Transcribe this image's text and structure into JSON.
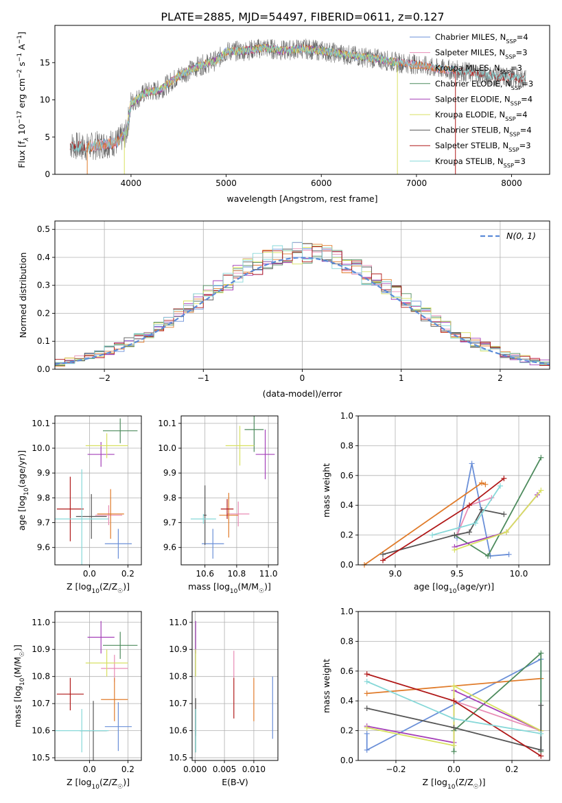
{
  "figure_title": "PLATE=2885, MJD=54497, FIBERID=0611, z=0.127",
  "colors": {
    "Chabrier MILES": "#6a8fd8",
    "Salpeter MILES": "#e88bb4",
    "Kroupa MILES": "#e07b2a",
    "Chabrier ELODIE": "#4c8a5c",
    "Salpeter ELODIE": "#a43fb8",
    "Kroupa ELODIE": "#d8e060",
    "Chabrier STELIB": "#555555",
    "Salpeter STELIB": "#b01818",
    "Kroupa STELIB": "#86d8d8",
    "normal_curve": "#5b8bd8"
  },
  "chart_data": [
    {
      "id": "spectrum",
      "type": "line",
      "title": "PLATE=2885, MJD=54497, FIBERID=0611, z=0.127",
      "xlabel": "wavelength [Angstrom, rest frame]",
      "ylabel": "Flux [f_λ 10^-17 erg cm^-2 s^-1 A^-1]",
      "xlim": [
        3200,
        8400
      ],
      "ylim": [
        0,
        20
      ],
      "xticks": [
        4000,
        5000,
        6000,
        7000,
        8000
      ],
      "yticks": [
        0,
        5,
        10,
        15
      ],
      "grid": false,
      "legend_position": "top-right",
      "continuum": {
        "x": [
          3350,
          3500,
          3700,
          3850,
          3950,
          4000,
          4150,
          4300,
          4500,
          4700,
          4900,
          5000,
          5200,
          5400,
          5600,
          5800,
          6000,
          6200,
          6400,
          6600,
          6800,
          7000,
          7200,
          7400,
          7600,
          7800,
          8000,
          8150
        ],
        "y": [
          4.0,
          3.6,
          4.0,
          4.3,
          5.5,
          9.5,
          11.0,
          11.3,
          13.2,
          14.5,
          15.3,
          16.5,
          16.6,
          17.0,
          16.6,
          16.9,
          16.6,
          16.2,
          15.8,
          15.5,
          15.0,
          14.8,
          14.2,
          14.0,
          13.6,
          13.2,
          13.0,
          12.8
        ]
      },
      "series": [
        {
          "name": "Chabrier MILES",
          "nssp": "4"
        },
        {
          "name": "Salpeter MILES",
          "nssp": "3"
        },
        {
          "name": "Kroupa MILES",
          "nssp": "3"
        },
        {
          "name": "Chabrier ELODIE",
          "nssp": "3"
        },
        {
          "name": "Salpeter ELODIE",
          "nssp": "4"
        },
        {
          "name": "Kroupa ELODIE",
          "nssp": "4"
        },
        {
          "name": "Chabrier STELIB",
          "nssp": "4"
        },
        {
          "name": "Salpeter STELIB",
          "nssp": "3"
        },
        {
          "name": "Kroupa STELIB",
          "nssp": "3"
        }
      ],
      "legend_prefix": "N",
      "legend_sub": "SSP"
    },
    {
      "id": "residuals",
      "type": "line",
      "xlabel": "(data-model)/error",
      "ylabel": "Normed distribution",
      "xlim": [
        -2.5,
        2.5
      ],
      "ylim": [
        0,
        0.53
      ],
      "xticks": [
        -2,
        -1,
        0,
        1,
        2
      ],
      "yticks": [
        0.0,
        0.1,
        0.2,
        0.3,
        0.4,
        0.5
      ],
      "grid": true,
      "legend_position": "top-right",
      "legend_label": "N(0, 1)",
      "bin_width": 0.1
    },
    {
      "id": "age_vs_Z",
      "type": "scatter",
      "xlabel": "Z [log10(Z/Z☉)]",
      "ylabel": "age [log10(age/yr)]",
      "xlim": [
        -0.18,
        0.27
      ],
      "ylim": [
        9.53,
        10.13
      ],
      "xticks": [
        0.0,
        0.2
      ],
      "xticklabels": [
        "0.0",
        "0.2"
      ],
      "yticks": [
        9.6,
        9.7,
        9.8,
        9.9,
        10.0,
        10.1
      ],
      "grid": true,
      "points": [
        {
          "series": "Chabrier MILES",
          "x": 0.15,
          "xerr": 0.07,
          "y": 9.615,
          "yerr": 0.06
        },
        {
          "series": "Salpeter MILES",
          "x": 0.1,
          "xerr": 0.07,
          "y": 9.73,
          "yerr": 0.04
        },
        {
          "series": "Kroupa MILES",
          "x": 0.11,
          "xerr": 0.07,
          "y": 9.735,
          "yerr": 0.1
        },
        {
          "series": "Chabrier ELODIE",
          "x": 0.16,
          "xerr": 0.09,
          "y": 10.07,
          "yerr": 0.05
        },
        {
          "series": "Salpeter ELODIE",
          "x": 0.06,
          "xerr": 0.07,
          "y": 9.975,
          "yerr": 0.05
        },
        {
          "series": "Kroupa ELODIE",
          "x": 0.09,
          "xerr": 0.11,
          "y": 10.01,
          "yerr": 0.05
        },
        {
          "series": "Chabrier STELIB",
          "x": 0.01,
          "xerr": 0.08,
          "y": 9.725,
          "yerr": 0.09
        },
        {
          "series": "Salpeter STELIB",
          "x": -0.1,
          "xerr": 0.07,
          "y": 9.755,
          "yerr": 0.13
        },
        {
          "series": "Kroupa STELIB",
          "x": -0.04,
          "xerr": 0.14,
          "y": 9.715,
          "yerr": 0.2
        }
      ]
    },
    {
      "id": "age_vs_mass",
      "type": "scatter",
      "xlabel": "mass [log10(M/M☉)]",
      "ylabel": "",
      "xlim": [
        10.45,
        11.06
      ],
      "ylim": [
        9.53,
        10.13
      ],
      "xticks": [
        10.6,
        10.8,
        11.0
      ],
      "xticklabels": [
        "10.6",
        "10.8",
        "11.0"
      ],
      "yticks": [
        9.6,
        9.7,
        9.8,
        9.9,
        10.0,
        10.1
      ],
      "grid": true,
      "points": [
        {
          "series": "Chabrier MILES",
          "x": 10.65,
          "xerr": 0.07,
          "y": 9.615,
          "yerr": 0.06
        },
        {
          "series": "Salpeter MILES",
          "x": 10.81,
          "xerr": 0.07,
          "y": 9.735,
          "yerr": 0.05
        },
        {
          "series": "Kroupa MILES",
          "x": 10.75,
          "xerr": 0.06,
          "y": 9.73,
          "yerr": 0.09
        },
        {
          "series": "Chabrier ELODIE",
          "x": 10.91,
          "xerr": 0.06,
          "y": 10.075,
          "yerr": 0.09
        },
        {
          "series": "Salpeter ELODIE",
          "x": 10.98,
          "xerr": 0.06,
          "y": 9.975,
          "yerr": 0.1
        },
        {
          "series": "Kroupa ELODIE",
          "x": 10.82,
          "xerr": 0.09,
          "y": 10.01,
          "yerr": 0.08
        },
        {
          "series": "Chabrier STELIB",
          "x": 10.6,
          "xerr": 0.01,
          "y": 9.73,
          "yerr": 0.12
        },
        {
          "series": "Salpeter STELIB",
          "x": 10.74,
          "xerr": 0.04,
          "y": 9.755,
          "yerr": 0.04
        },
        {
          "series": "Kroupa STELIB",
          "x": 10.59,
          "xerr": 0.08,
          "y": 9.715,
          "yerr": 0.02
        }
      ]
    },
    {
      "id": "massweight_vs_age",
      "type": "line",
      "xlabel": "age [log10(age/yr)]",
      "ylabel": "mass weight",
      "xlim": [
        8.7,
        10.25
      ],
      "ylim": [
        0,
        1
      ],
      "xticks": [
        9.0,
        9.5,
        10.0
      ],
      "xticklabels": [
        "9.0",
        "9.5",
        "10.0"
      ],
      "yticks": [
        0.0,
        0.2,
        0.4,
        0.6,
        0.8,
        1.0
      ],
      "grid": true,
      "series": [
        {
          "name": "Chabrier MILES",
          "x": [
            9.5,
            9.62,
            9.77,
            9.92
          ],
          "y": [
            0.18,
            0.68,
            0.06,
            0.07
          ]
        },
        {
          "name": "Salpeter MILES",
          "x": [
            9.5,
            9.6,
            9.78
          ],
          "y": [
            0.2,
            0.4,
            0.45
          ]
        },
        {
          "name": "Kroupa MILES",
          "x": [
            8.75,
            9.7,
            9.73
          ],
          "y": [
            0.0,
            0.55,
            0.54
          ]
        },
        {
          "name": "Chabrier ELODIE",
          "x": [
            9.48,
            9.75,
            10.18
          ],
          "y": [
            0.2,
            0.06,
            0.72
          ]
        },
        {
          "name": "Salpeter ELODIE",
          "x": [
            9.48,
            9.9,
            10.15
          ],
          "y": [
            0.12,
            0.22,
            0.47
          ]
        },
        {
          "name": "Kroupa ELODIE",
          "x": [
            9.48,
            9.9,
            10.18
          ],
          "y": [
            0.1,
            0.22,
            0.5
          ]
        },
        {
          "name": "Chabrier STELIB",
          "x": [
            8.9,
            9.48,
            9.6,
            9.7,
            9.88
          ],
          "y": [
            0.07,
            0.2,
            0.22,
            0.37,
            0.34
          ]
        },
        {
          "name": "Salpeter STELIB",
          "x": [
            8.9,
            9.6,
            9.88
          ],
          "y": [
            0.03,
            0.4,
            0.58
          ]
        },
        {
          "name": "Kroupa STELIB",
          "x": [
            9.3,
            9.65,
            9.85
          ],
          "y": [
            0.2,
            0.28,
            0.53
          ]
        }
      ]
    },
    {
      "id": "mass_vs_Z",
      "type": "scatter",
      "xlabel": "Z [log10(Z/Z☉)]",
      "ylabel": "mass [log10(M/M☉)]",
      "xlim": [
        -0.18,
        0.27
      ],
      "ylim": [
        10.49,
        11.04
      ],
      "xticks": [
        0.0,
        0.2
      ],
      "xticklabels": [
        "0.0",
        "0.2"
      ],
      "yticks": [
        10.5,
        10.6,
        10.7,
        10.8,
        10.9,
        11.0
      ],
      "grid": true,
      "points": [
        {
          "series": "Chabrier MILES",
          "x": 0.15,
          "xerr": 0.07,
          "y": 10.615,
          "yerr": 0.09
        },
        {
          "series": "Salpeter MILES",
          "x": 0.13,
          "xerr": 0.07,
          "y": 10.83,
          "yerr": 0.05
        },
        {
          "series": "Kroupa MILES",
          "x": 0.13,
          "xerr": 0.07,
          "y": 10.715,
          "yerr": 0.08
        },
        {
          "series": "Chabrier ELODIE",
          "x": 0.16,
          "xerr": 0.09,
          "y": 10.915,
          "yerr": 0.05
        },
        {
          "series": "Salpeter ELODIE",
          "x": 0.06,
          "xerr": 0.07,
          "y": 10.945,
          "yerr": 0.06
        },
        {
          "series": "Kroupa ELODIE",
          "x": 0.09,
          "xerr": 0.11,
          "y": 10.85,
          "yerr": 0.05
        },
        {
          "series": "Chabrier STELIB",
          "x": 0.02,
          "xerr": 0.07,
          "y": 10.6,
          "yerr": 0.11
        },
        {
          "series": "Salpeter STELIB",
          "x": -0.1,
          "xerr": 0.07,
          "y": 10.735,
          "yerr": 0.06
        },
        {
          "series": "Kroupa STELIB",
          "x": -0.04,
          "xerr": 0.14,
          "y": 10.6,
          "yerr": 0.08
        }
      ]
    },
    {
      "id": "mass_vs_EBV",
      "type": "scatter",
      "xlabel": "E(B-V)",
      "ylabel": "",
      "xlim": [
        -0.0005,
        0.0141
      ],
      "ylim": [
        10.49,
        11.04
      ],
      "xticks": [
        0.0,
        0.005,
        0.01
      ],
      "xticklabels": [
        "0.000",
        "0.005",
        "0.010"
      ],
      "yticks": [
        10.5,
        10.6,
        10.7,
        10.8,
        10.9,
        11.0
      ],
      "grid": true,
      "points": [
        {
          "series": "Chabrier MILES",
          "x": 0.0132,
          "xerr": 0,
          "y": 10.685,
          "yerr": 0.115
        },
        {
          "series": "Salpeter MILES",
          "x": 0.0066,
          "xerr": 0,
          "y": 10.845,
          "yerr": 0.05
        },
        {
          "series": "Kroupa MILES",
          "x": 0.01,
          "xerr": 0,
          "y": 10.715,
          "yerr": 0.08
        },
        {
          "series": "Chabrier ELODIE",
          "x": 0.0001,
          "xerr": 0,
          "y": 10.6,
          "yerr": 0.08
        },
        {
          "series": "Salpeter ELODIE",
          "x": 0.0001,
          "xerr": 0,
          "y": 10.945,
          "yerr": 0.06
        },
        {
          "series": "Kroupa ELODIE",
          "x": 0.0001,
          "xerr": 0,
          "y": 10.85,
          "yerr": 0.05
        },
        {
          "series": "Chabrier STELIB",
          "x": 0.0001,
          "xerr": 0,
          "y": 10.65,
          "yerr": 0.07
        },
        {
          "series": "Salpeter STELIB",
          "x": 0.0066,
          "xerr": 0,
          "y": 10.72,
          "yerr": 0.075
        },
        {
          "series": "Kroupa STELIB",
          "x": 0.0001,
          "xerr": 0,
          "y": 10.6,
          "yerr": 0.08
        }
      ]
    },
    {
      "id": "massweight_vs_Z",
      "type": "line",
      "xlabel": "Z [log10(Z/Z☉)]",
      "ylabel": "mass weight",
      "xlim": [
        -0.33,
        0.33
      ],
      "ylim": [
        0,
        1
      ],
      "xticks": [
        -0.2,
        0.0,
        0.2
      ],
      "xticklabels": [
        "−0.2",
        "0.0",
        "0.2"
      ],
      "yticks": [
        0.0,
        0.2,
        0.4,
        0.6,
        0.8,
        1.0
      ],
      "grid": true,
      "series": [
        {
          "name": "Chabrier MILES",
          "x": [
            -0.3,
            -0.3,
            0.3,
            0.3
          ],
          "y": [
            0.18,
            0.07,
            0.68,
            0.07
          ]
        },
        {
          "name": "Salpeter MILES",
          "x": [
            0.0,
            0.3
          ],
          "y": [
            0.4,
            0.2
          ]
        },
        {
          "name": "Kroupa MILES",
          "x": [
            -0.3,
            0.3
          ],
          "y": [
            0.45,
            0.55
          ]
        },
        {
          "name": "Chabrier ELODIE",
          "x": [
            0.0,
            0.0,
            0.3,
            0.3
          ],
          "y": [
            0.06,
            0.2,
            0.72,
            0.06
          ]
        },
        {
          "name": "Salpeter ELODIE",
          "x": [
            -0.3,
            0.0,
            0.0,
            0.3
          ],
          "y": [
            0.23,
            0.12,
            0.47,
            0.2
          ]
        },
        {
          "name": "Kroupa ELODIE",
          "x": [
            -0.3,
            0.0,
            0.0,
            0.3
          ],
          "y": [
            0.22,
            0.1,
            0.5,
            0.2
          ]
        },
        {
          "name": "Chabrier STELIB",
          "x": [
            -0.3,
            0.0,
            0.3,
            0.3
          ],
          "y": [
            0.35,
            0.22,
            0.07,
            0.37
          ]
        },
        {
          "name": "Salpeter STELIB",
          "x": [
            -0.3,
            0.0,
            0.3
          ],
          "y": [
            0.58,
            0.4,
            0.03
          ]
        },
        {
          "name": "Kroupa STELIB",
          "x": [
            -0.3,
            0.0,
            0.3
          ],
          "y": [
            0.53,
            0.28,
            0.18
          ]
        }
      ]
    }
  ]
}
